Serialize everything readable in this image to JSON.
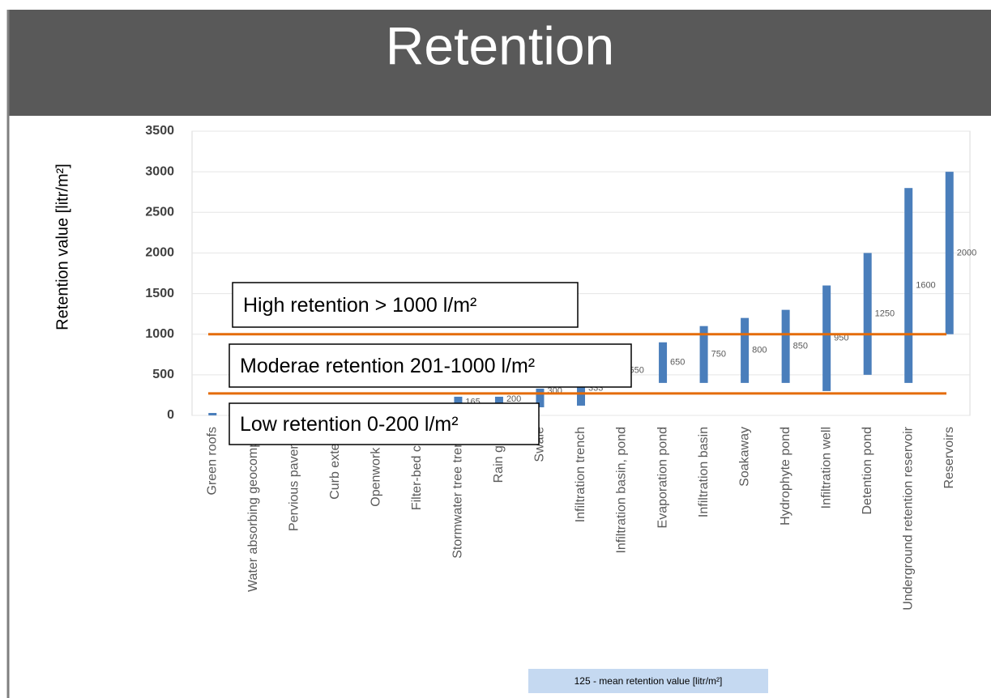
{
  "chart_data": {
    "type": "floating-bar",
    "title": "Retention",
    "y_label": "Retention value  [litr/m²]",
    "categories": [
      "Green roofs",
      "Water absorbing geocompos",
      "Pervious pavemer",
      "Curb extensi",
      "Openwork pla",
      "Filter-bed char",
      "Stormwater tree trench",
      "Rain gard",
      "Swale",
      "Infiltration trench",
      "Infiltration basin, pond",
      "Evaporation pond",
      "Infiltration basin",
      "Soakaway",
      "Hydrophyte pond",
      "Infiltration well",
      "Detention pond",
      "Underground retention reservoir",
      "Reservoirs"
    ],
    "low": [
      0,
      null,
      null,
      null,
      null,
      null,
      100,
      100,
      100,
      120,
      null,
      400,
      400,
      400,
      400,
      300,
      500,
      400,
      1000
    ],
    "high": [
      30,
      null,
      null,
      null,
      null,
      null,
      230,
      230,
      330,
      420,
      null,
      900,
      1100,
      1200,
      1300,
      1600,
      2000,
      2800,
      3000
    ],
    "means": [
      null,
      null,
      null,
      null,
      null,
      null,
      165,
      200,
      300,
      333,
      550,
      650,
      750,
      800,
      850,
      950,
      1250,
      1600,
      2000
    ],
    "color": "#4a7ebb",
    "ylim": [
      0,
      3500
    ],
    "yticks": [
      0,
      500,
      1000,
      1500,
      2000,
      2500,
      3000,
      3500
    ],
    "grid": true,
    "reference_lines": [
      1000,
      270
    ],
    "reference_color": "#e46c0a",
    "annotations": [
      "High retention > 1000 l/m²",
      "Moderae retention 201-1000 l/m²",
      "Low retention 0-200 l/m²"
    ],
    "footnote": "125 - mean retention value [litr/m²]"
  }
}
